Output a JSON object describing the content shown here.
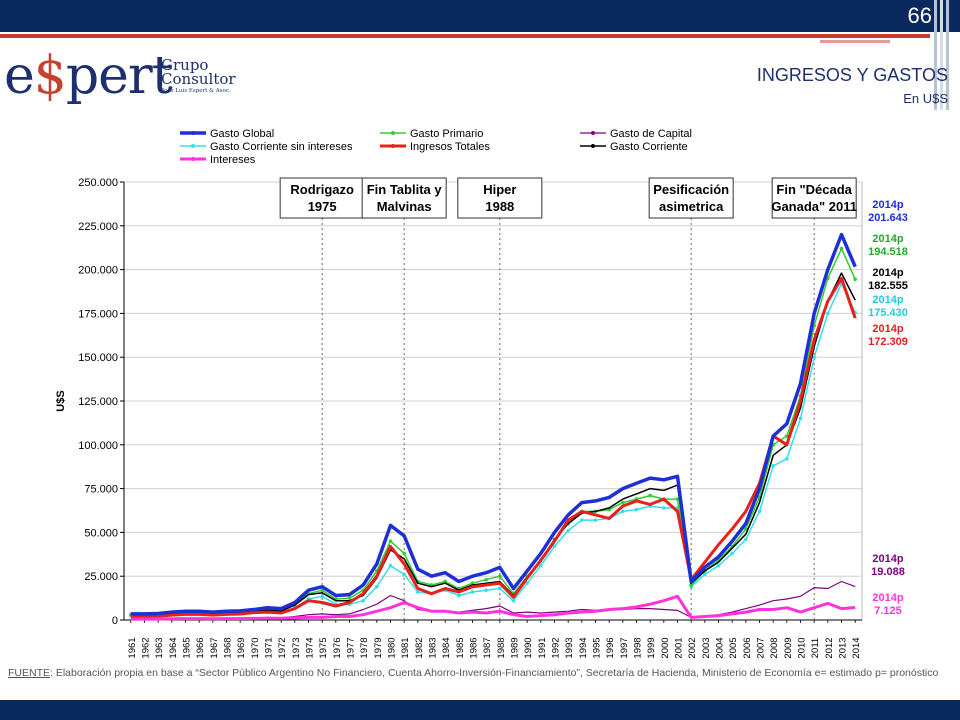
{
  "slide": {
    "number": "66",
    "title": "INGRESOS Y GASTOS",
    "subtitle": "En U$S"
  },
  "logo": {
    "main_left": "e",
    "main_dollar": "$",
    "main_right": "pert",
    "grupo_line1": "Grupo",
    "grupo_line2": "Consultor",
    "sub": "José Luis Espert & Asoc."
  },
  "footer": {
    "label": "FUENTE",
    "text": ": Elaboración propia en base a “Sector Público Argentino No Financiero, Cuenta Ahorro-Inversión-Financiamiento”, Secretaría de Hacienda, Ministerio de Economía e= estimado p= pronóstico"
  },
  "colors": {
    "topbar": "#0a2a5e",
    "accent_red": "#c43b32",
    "gasto_global": "#1f2fd6",
    "gasto_primario": "#33cc33",
    "gasto_capital": "#800080",
    "gasto_corriente_sin_intereses": "#33e0ea",
    "ingresos_totales": "#e8201a",
    "gasto_corriente": "#000000",
    "intereses": "#ff33dd"
  },
  "chart_data": {
    "type": "line",
    "ylabel": "U$S",
    "ylim": [
      0,
      250000
    ],
    "yticks": [
      "0",
      "25.000",
      "50.000",
      "75.000",
      "100.000",
      "125.000",
      "150.000",
      "175.000",
      "200.000",
      "225.000",
      "250.000"
    ],
    "x": [
      "1961",
      "1962",
      "1963",
      "1964",
      "1965",
      "1966",
      "1967",
      "1968",
      "1969",
      "1970",
      "1971",
      "1972",
      "1973",
      "1974",
      "1975",
      "1976",
      "1977",
      "1978",
      "1979",
      "1980",
      "1981",
      "1982",
      "1983",
      "1984",
      "1985",
      "1986",
      "1987",
      "1988",
      "1989",
      "1990",
      "1991",
      "1992",
      "1993",
      "1994",
      "1995",
      "1996",
      "1997",
      "1998",
      "1999",
      "2000",
      "2001",
      "2002",
      "2003",
      "2004",
      "2005",
      "2006",
      "2007",
      "2008",
      "2009",
      "2010",
      "2011",
      "2012",
      "2013",
      "2014"
    ],
    "series": [
      {
        "name": "Gasto Global",
        "key": "gasto_global",
        "width": 3.5,
        "values": [
          3500,
          3500,
          3700,
          4500,
          5000,
          5000,
          4500,
          5000,
          5200,
          6000,
          7000,
          6500,
          10000,
          17000,
          19000,
          14000,
          14500,
          20000,
          32000,
          54000,
          48000,
          29000,
          25000,
          27000,
          22000,
          25000,
          27000,
          30000,
          18000,
          28000,
          38000,
          50000,
          60000,
          67000,
          68000,
          70000,
          75000,
          78000,
          81000,
          80000,
          82000,
          22000,
          30000,
          36000,
          45000,
          55000,
          75000,
          105000,
          112000,
          135000,
          175000,
          200000,
          220000,
          201643
        ]
      },
      {
        "name": "Gasto Primario",
        "key": "gasto_primario",
        "width": 1.5,
        "values": [
          3000,
          3000,
          3300,
          4000,
          4500,
          4500,
          4000,
          4500,
          4700,
          5500,
          6000,
          5500,
          9000,
          15000,
          17000,
          12000,
          12500,
          17000,
          28000,
          45000,
          38000,
          22000,
          20000,
          22000,
          18000,
          21000,
          23000,
          25000,
          15000,
          25000,
          34000,
          46000,
          55000,
          62000,
          62000,
          63000,
          67000,
          69000,
          71000,
          69000,
          69000,
          20000,
          28000,
          34000,
          42000,
          52000,
          70000,
          100000,
          105000,
          128000,
          168000,
          195000,
          212000,
          194518
        ]
      },
      {
        "name": "Gasto de Capital",
        "key": "gasto_capital",
        "width": 1.2,
        "values": [
          500,
          500,
          600,
          800,
          900,
          900,
          800,
          900,
          1000,
          1200,
          1500,
          1300,
          2000,
          3000,
          3500,
          3000,
          3500,
          6000,
          9000,
          14000,
          11000,
          6000,
          5000,
          5000,
          4500,
          5500,
          6500,
          8000,
          4000,
          4500,
          4000,
          4500,
          5000,
          6000,
          5500,
          6000,
          6000,
          6500,
          6500,
          6000,
          5500,
          1500,
          2000,
          3000,
          4500,
          6500,
          8500,
          11000,
          12000,
          13500,
          18500,
          18000,
          22000,
          19088
        ]
      },
      {
        "name": "Gasto Corriente sin intereses",
        "key": "gasto_corriente_sin_intereses",
        "width": 1.5,
        "values": [
          2500,
          2500,
          2700,
          3200,
          3500,
          3500,
          3200,
          3500,
          3700,
          4300,
          4500,
          4200,
          7000,
          12000,
          13500,
          9000,
          9000,
          11000,
          19000,
          31000,
          26000,
          16000,
          15000,
          17000,
          14000,
          16000,
          17000,
          18000,
          11000,
          21000,
          31000,
          42000,
          51000,
          57000,
          57000,
          58000,
          62000,
          63000,
          65000,
          64000,
          64000,
          19000,
          26000,
          31000,
          38000,
          46000,
          62000,
          88000,
          92000,
          115000,
          150000,
          175000,
          192000,
          175430
        ]
      },
      {
        "name": "Ingresos Totales",
        "key": "ingresos_totales",
        "width": 3,
        "values": [
          2000,
          2000,
          2200,
          2800,
          3200,
          3200,
          2800,
          3200,
          3400,
          4200,
          4500,
          4000,
          6500,
          11000,
          10000,
          8000,
          10000,
          15000,
          25000,
          42000,
          32000,
          18000,
          15000,
          18000,
          16000,
          19000,
          20000,
          21000,
          13000,
          24000,
          34000,
          45000,
          57000,
          62000,
          60000,
          58000,
          65000,
          68000,
          66000,
          69000,
          62000,
          23000,
          33000,
          43000,
          52000,
          62000,
          78000,
          105000,
          100000,
          125000,
          160000,
          182000,
          195000,
          172309
        ]
      },
      {
        "name": "Gasto Corriente",
        "key": "gasto_corriente",
        "width": 1.5,
        "values": [
          3000,
          3000,
          3200,
          3900,
          4300,
          4300,
          3900,
          4300,
          4500,
          5200,
          5500,
          5100,
          8500,
          14500,
          15500,
          11000,
          11000,
          14000,
          24000,
          40000,
          35000,
          21000,
          19000,
          21000,
          17000,
          20000,
          21000,
          22000,
          14000,
          24000,
          34000,
          46000,
          55000,
          61000,
          62000,
          64000,
          69000,
          72000,
          75000,
          74000,
          77000,
          21000,
          28000,
          33000,
          41000,
          49000,
          67000,
          94000,
          100000,
          121000,
          156000,
          182000,
          198000,
          182555
        ]
      },
      {
        "name": "Intereses",
        "key": "intereses",
        "width": 3,
        "values": [
          500,
          500,
          500,
          700,
          800,
          800,
          700,
          800,
          800,
          900,
          1000,
          1000,
          1200,
          1500,
          1500,
          2000,
          2000,
          3000,
          5000,
          7000,
          10000,
          7000,
          5000,
          5000,
          4000,
          4500,
          4000,
          5000,
          3000,
          2000,
          2500,
          3000,
          4000,
          4500,
          5000,
          6000,
          6500,
          7500,
          9000,
          11000,
          13500,
          1500,
          2000,
          2500,
          3500,
          4500,
          6000,
          6000,
          7000,
          4500,
          7000,
          9500,
          6500,
          7125
        ]
      }
    ],
    "events": [
      {
        "line1": "Rodrigazo",
        "line2": "1975",
        "year": "1975"
      },
      {
        "line1": "Fin Tablita y",
        "line2": "Malvinas",
        "year": "1981"
      },
      {
        "line1": "Hiper",
        "line2": "1988",
        "year": "1988"
      },
      {
        "line1": "Pesificación",
        "line2": "asimetrica",
        "year": "2002"
      },
      {
        "line1": "Fin \"Década",
        "line2": "Ganada\" 2011",
        "year": "2011"
      }
    ],
    "annotations": [
      {
        "line1": "2014p",
        "line2": "201.643",
        "key": "gasto_global",
        "color": "#1f2fd6"
      },
      {
        "line1": "2014p",
        "line2": "194.518",
        "key": "gasto_primario",
        "color": "#22aa22"
      },
      {
        "line1": "2014p",
        "line2": "182.555",
        "key": "gasto_corriente",
        "color": "#000000"
      },
      {
        "line1": "2014p",
        "line2": "175.430",
        "key": "gasto_corriente_sin_intereses",
        "color": "#22ccdd"
      },
      {
        "line1": "2014p",
        "line2": "172.309",
        "key": "ingresos_totales",
        "color": "#e8201a"
      },
      {
        "line1": "2014p",
        "line2": "19.088",
        "key": "gasto_capital",
        "color": "#800080"
      },
      {
        "line1": "2014p",
        "line2": "7.125",
        "key": "intereses",
        "color": "#ff33dd"
      }
    ],
    "legend_placement": "top"
  }
}
